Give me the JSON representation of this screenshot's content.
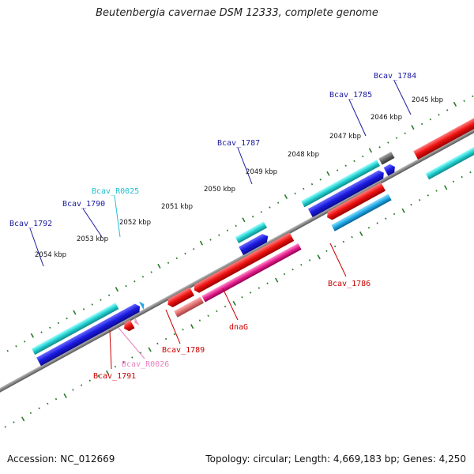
{
  "title": "Beutenbergia cavernae DSM 12333, complete genome",
  "footer": {
    "accession": "Accession: NC_012669",
    "summary": "Topology: circular; Length: 4,669,183 bp; Genes: 4,250"
  },
  "colors": {
    "backbone": "#888888",
    "ticks": "#2a7a2a",
    "cds_blue": "#1a1ae0",
    "cds_cyan": "#22d0d0",
    "cds_red": "#ee1111",
    "cds_magenta": "#e61e8c",
    "cds_light_red": "#e07070",
    "cds_sky": "#1ea8e6",
    "cds_gray": "#666666",
    "label_blue": "#1a1aa0",
    "label_red": "#cc0000",
    "label_cyan": "#22c0d0",
    "label_pink": "#e880c0"
  },
  "kbp_ticks": [
    "2054 kbp",
    "2053 kbp",
    "2052 kbp",
    "2051 kbp",
    "2050 kbp",
    "2049 kbp",
    "2048 kbp",
    "2047 kbp",
    "2046 kbp",
    "2045 kbp"
  ],
  "gene_labels": [
    {
      "text": "Bcav_1792",
      "color": "#1a1aa0"
    },
    {
      "text": "Bcav_1790",
      "color": "#1a1aa0"
    },
    {
      "text": "Bcav_R0025",
      "color": "#22c0d0"
    },
    {
      "text": "Bcav_1787",
      "color": "#1a1aa0"
    },
    {
      "text": "Bcav_1785",
      "color": "#1a1aa0"
    },
    {
      "text": "Bcav_1784",
      "color": "#1a1aa0"
    },
    {
      "text": "Bcav_1786",
      "color": "#cc0000"
    },
    {
      "text": "dnaG",
      "color": "#cc0000"
    },
    {
      "text": "Bcav_1789",
      "color": "#cc0000"
    },
    {
      "text": "Bcav_R0026",
      "color": "#e880c0"
    },
    {
      "text": "Bcav_1791",
      "color": "#cc0000"
    }
  ]
}
